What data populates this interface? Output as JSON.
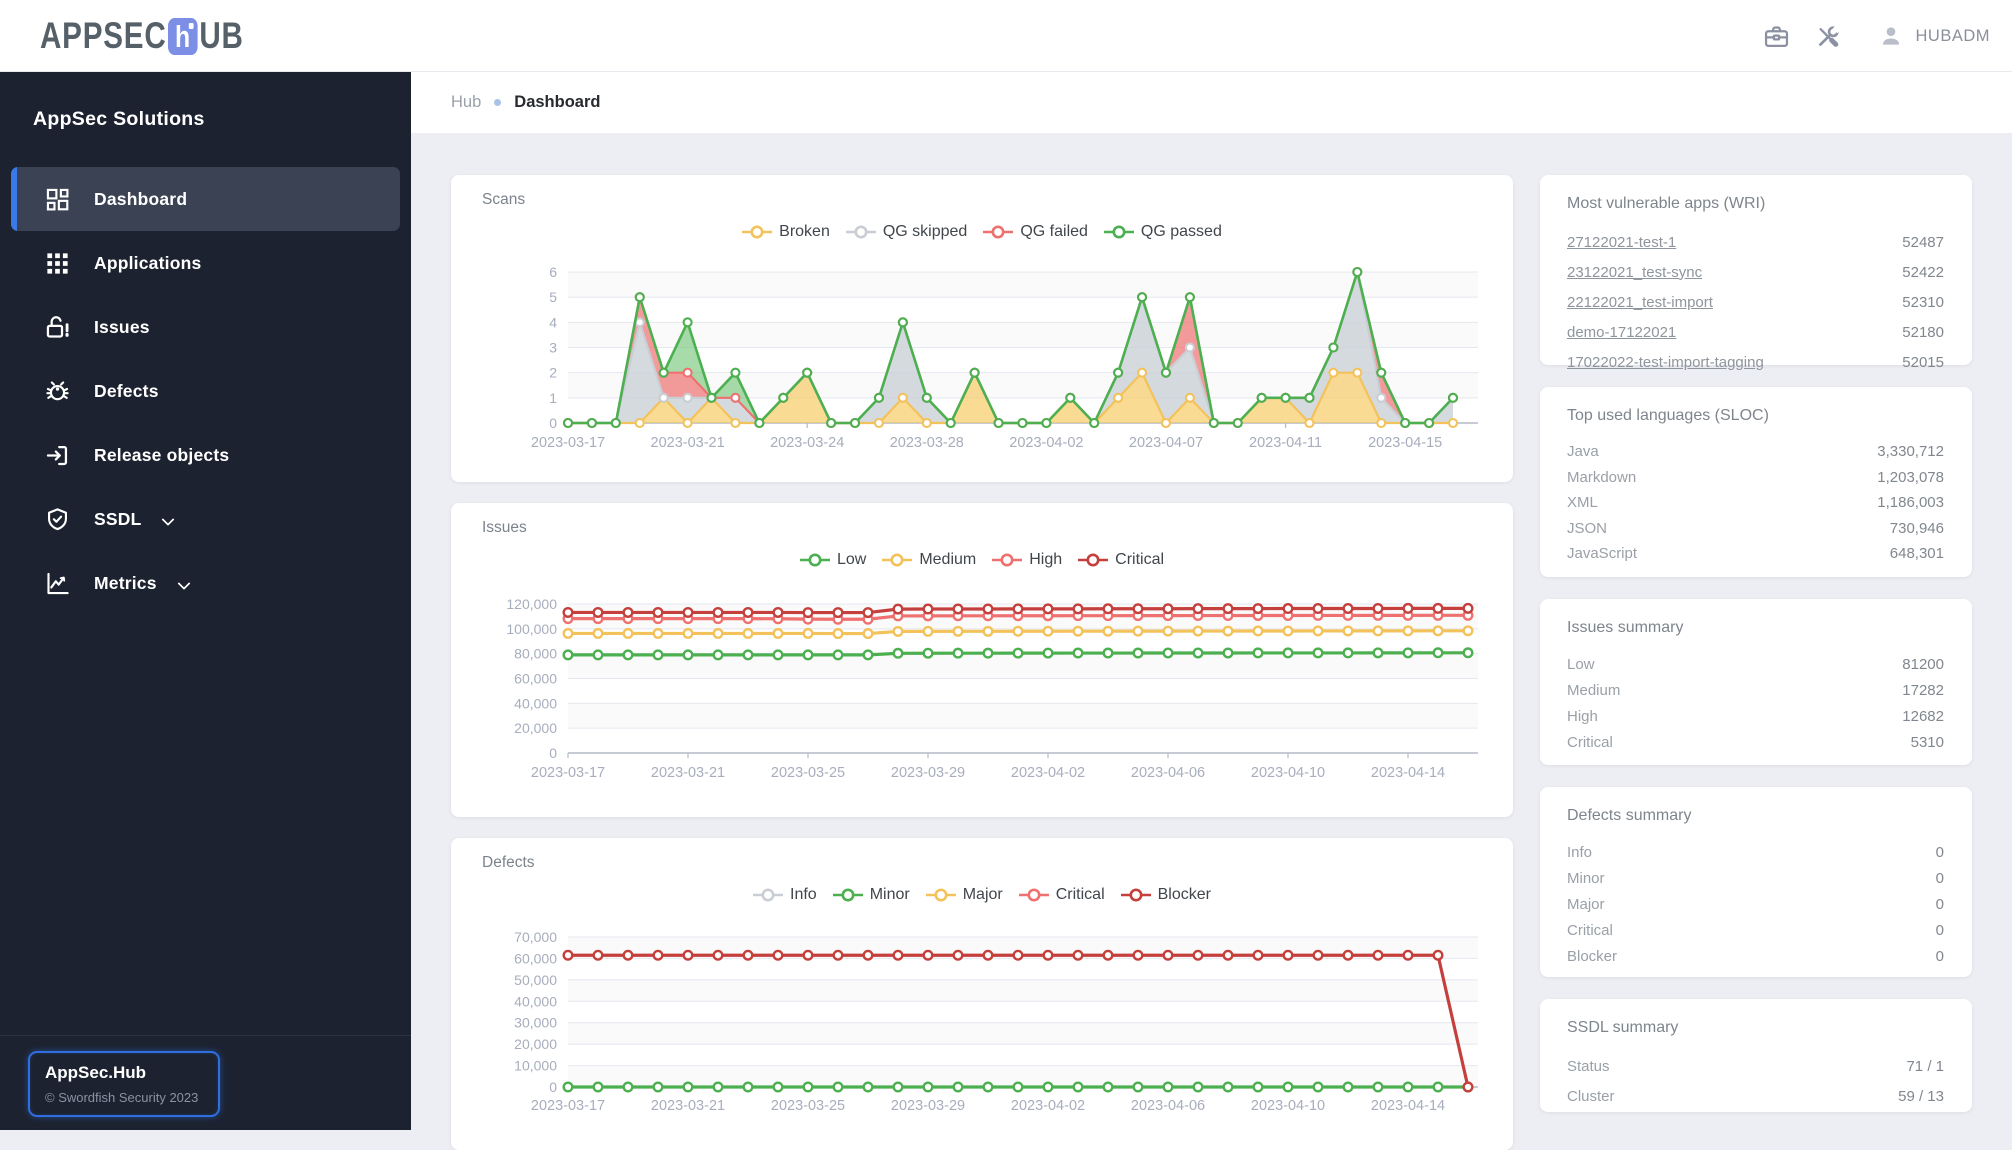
{
  "header": {
    "logo": {
      "pre": "APPSEC",
      "mid": "h",
      "post": "UB"
    },
    "user_label": "HUBADM"
  },
  "sidebar": {
    "title": "AppSec Solutions",
    "items": [
      {
        "label": "Dashboard",
        "icon": "dashboard-icon",
        "active": true
      },
      {
        "label": "Applications",
        "icon": "apps-icon"
      },
      {
        "label": "Issues",
        "icon": "lock-open-icon"
      },
      {
        "label": "Defects",
        "icon": "bug-icon"
      },
      {
        "label": "Release objects",
        "icon": "exit-to-app-icon"
      },
      {
        "label": "SSDL",
        "icon": "shield-check-icon",
        "chevron": true
      },
      {
        "label": "Metrics",
        "icon": "metrics-icon",
        "chevron": true
      }
    ],
    "footer": {
      "title": "AppSec.Hub",
      "copyright": "© Swordfish Security 2023"
    }
  },
  "breadcrumb": {
    "root": "Hub",
    "current": "Dashboard"
  },
  "chart_data": [
    {
      "id": "scans",
      "type": "area",
      "title": "Scans",
      "stacked": true,
      "x_tick_labels": [
        "2023-03-17",
        "2023-03-21",
        "2023-03-24",
        "2023-03-28",
        "2023-04-02",
        "2023-04-07",
        "2023-04-11",
        "2023-04-15"
      ],
      "x_tick_indices": [
        0,
        5,
        10,
        15,
        20,
        25,
        30,
        35
      ],
      "n_points": 38,
      "ylim": [
        0,
        6
      ],
      "ytick_step": 1,
      "grid": true,
      "legend_position": "top",
      "series": [
        {
          "name": "Broken",
          "color": "#f3c25b",
          "fill": "rgba(246,199,91,0.65)",
          "values": [
            0,
            0,
            0,
            0,
            1,
            0,
            1,
            0,
            0,
            1,
            2,
            0,
            0,
            0,
            1,
            0,
            0,
            2,
            0,
            0,
            0,
            1,
            0,
            1,
            2,
            0,
            1,
            0,
            0,
            1,
            1,
            0,
            2,
            2,
            0,
            0,
            0,
            0
          ]
        },
        {
          "name": "QG skipped",
          "color": "#c9ced4",
          "fill": "rgba(203,209,215,0.8)",
          "values": [
            0,
            0,
            0,
            4,
            0,
            1,
            0,
            1,
            0,
            0,
            0,
            0,
            0,
            1,
            3,
            1,
            0,
            0,
            0,
            0,
            0,
            0,
            0,
            1,
            3,
            2,
            2,
            0,
            0,
            0,
            0,
            1,
            1,
            4,
            1,
            0,
            0,
            1
          ]
        },
        {
          "name": "QG failed",
          "color": "#ee7170",
          "fill": "rgba(238,113,113,0.7)",
          "values": [
            0,
            0,
            0,
            1,
            1,
            1,
            0,
            0,
            0,
            0,
            0,
            0,
            0,
            0,
            0,
            0,
            0,
            0,
            0,
            0,
            0,
            0,
            0,
            0,
            0,
            0,
            2,
            0,
            0,
            0,
            0,
            0,
            0,
            0,
            1,
            0,
            0,
            0
          ]
        },
        {
          "name": "QG passed",
          "color": "#4cb050",
          "fill": "rgba(109,195,113,0.6)",
          "values": [
            0,
            0,
            0,
            0,
            0,
            2,
            0,
            1,
            0,
            0,
            0,
            0,
            0,
            0,
            0,
            0,
            0,
            0,
            0,
            0,
            0,
            0,
            0,
            0,
            0,
            0,
            0,
            0,
            0,
            0,
            0,
            0,
            0,
            0,
            0,
            0,
            0,
            0
          ]
        }
      ]
    },
    {
      "id": "issues",
      "type": "line",
      "title": "Issues",
      "stacked": false,
      "x_tick_labels": [
        "2023-03-17",
        "2023-03-21",
        "2023-03-25",
        "2023-03-29",
        "2023-04-02",
        "2023-04-06",
        "2023-04-10",
        "2023-04-14"
      ],
      "x_tick_indices": [
        0,
        4,
        8,
        12,
        16,
        20,
        24,
        28
      ],
      "n_points": 31,
      "ylim": [
        0,
        120000
      ],
      "ytick_step": 20000,
      "grid": true,
      "legend_position": "top",
      "series": [
        {
          "name": "Low",
          "color": "#4cb050",
          "values": [
            79000,
            79000,
            79000,
            79000,
            79000,
            79000,
            79000,
            79000,
            79000,
            79000,
            79000,
            80300,
            80350,
            80400,
            80400,
            80450,
            80450,
            80500,
            80500,
            80500,
            80550,
            80550,
            80550,
            80600,
            80600,
            80600,
            80600,
            80650,
            80650,
            80700,
            80700
          ]
        },
        {
          "name": "Medium",
          "color": "#f3c25b",
          "values": [
            96300,
            96300,
            96300,
            96300,
            96300,
            96300,
            96300,
            96300,
            96300,
            96200,
            96200,
            97900,
            97950,
            98000,
            98000,
            98050,
            98050,
            98100,
            98100,
            98150,
            98150,
            98200,
            98200,
            98250,
            98250,
            98300,
            98300,
            98350,
            98350,
            98400,
            98400
          ]
        },
        {
          "name": "High",
          "color": "#ee7170",
          "values": [
            108200,
            108200,
            108200,
            108200,
            108200,
            108200,
            108200,
            108100,
            107800,
            107700,
            107700,
            110400,
            110450,
            110500,
            110500,
            110550,
            110550,
            110600,
            110600,
            110650,
            110650,
            110700,
            110700,
            110750,
            110750,
            110800,
            110800,
            110850,
            110850,
            110900,
            110900
          ]
        },
        {
          "name": "Critical",
          "color": "#c5403c",
          "values": [
            113200,
            113200,
            113200,
            113200,
            113200,
            113200,
            113200,
            113200,
            113100,
            113100,
            113100,
            115900,
            115950,
            116000,
            116000,
            116050,
            116100,
            116100,
            116150,
            116200,
            116200,
            116250,
            116300,
            116300,
            116350,
            116350,
            116400,
            116400,
            116450,
            116450,
            116500
          ]
        }
      ]
    },
    {
      "id": "defects",
      "type": "line",
      "title": "Defects",
      "stacked": false,
      "x_tick_labels": [
        "2023-03-17",
        "2023-03-21",
        "2023-03-25",
        "2023-03-29",
        "2023-04-02",
        "2023-04-06",
        "2023-04-10",
        "2023-04-14"
      ],
      "x_tick_indices": [
        0,
        4,
        8,
        12,
        16,
        20,
        24,
        28
      ],
      "n_points": 31,
      "ylim": [
        0,
        70000
      ],
      "ytick_step": 10000,
      "grid": true,
      "legend_position": "top",
      "series": [
        {
          "name": "Info",
          "color": "#c9ced4",
          "values": []
        },
        {
          "name": "Minor",
          "color": "#4cb050",
          "values": [
            0,
            0,
            0,
            0,
            0,
            0,
            0,
            0,
            0,
            0,
            0,
            0,
            0,
            0,
            0,
            0,
            0,
            0,
            0,
            0,
            0,
            0,
            0,
            0,
            0,
            0,
            0,
            0,
            0,
            0,
            0
          ]
        },
        {
          "name": "Major",
          "color": "#f3c25b",
          "values": []
        },
        {
          "name": "Critical",
          "color": "#ee7170",
          "values": []
        },
        {
          "name": "Blocker",
          "color": "#c5403c",
          "values": [
            61500,
            61500,
            61500,
            61500,
            61500,
            61500,
            61500,
            61500,
            61500,
            61500,
            61500,
            61500,
            61500,
            61500,
            61500,
            61500,
            61500,
            61500,
            61500,
            61500,
            61500,
            61500,
            61500,
            61500,
            61500,
            61500,
            61500,
            61500,
            61500,
            61500,
            0
          ]
        }
      ]
    }
  ],
  "panels": [
    {
      "id": "apps",
      "title": "Most vulnerable apps (WRI)",
      "link_rows": true,
      "rows": [
        {
          "label": "27122021-test-1",
          "value": "52487"
        },
        {
          "label": "23122021_test-sync",
          "value": "52422"
        },
        {
          "label": "22122021_test-import",
          "value": "52310"
        },
        {
          "label": "demo-17122021",
          "value": "52180"
        },
        {
          "label": "17022022-test-import-tagging",
          "value": "52015"
        }
      ]
    },
    {
      "id": "langs",
      "title": "Top used languages (SLOC)",
      "rows": [
        {
          "label": "Java",
          "value": "3,330,712"
        },
        {
          "label": "Markdown",
          "value": "1,203,078"
        },
        {
          "label": "XML",
          "value": "1,186,003"
        },
        {
          "label": "JSON",
          "value": "730,946"
        },
        {
          "label": "JavaScript",
          "value": "648,301"
        }
      ]
    },
    {
      "id": "issues_summary",
      "title": "Issues summary",
      "rows": [
        {
          "label": "Low",
          "value": "81200"
        },
        {
          "label": "Medium",
          "value": "17282"
        },
        {
          "label": "High",
          "value": "12682"
        },
        {
          "label": "Critical",
          "value": "5310"
        }
      ]
    },
    {
      "id": "defects_summary",
      "title": "Defects summary",
      "rows": [
        {
          "label": "Info",
          "value": "0"
        },
        {
          "label": "Minor",
          "value": "0"
        },
        {
          "label": "Major",
          "value": "0"
        },
        {
          "label": "Critical",
          "value": "0"
        },
        {
          "label": "Blocker",
          "value": "0"
        }
      ]
    },
    {
      "id": "ssdl_summary",
      "title": "SSDL summary",
      "rows": [
        {
          "label": "Status",
          "value": "71 / 1"
        },
        {
          "label": "Cluster",
          "value": "59 / 13"
        }
      ]
    }
  ]
}
